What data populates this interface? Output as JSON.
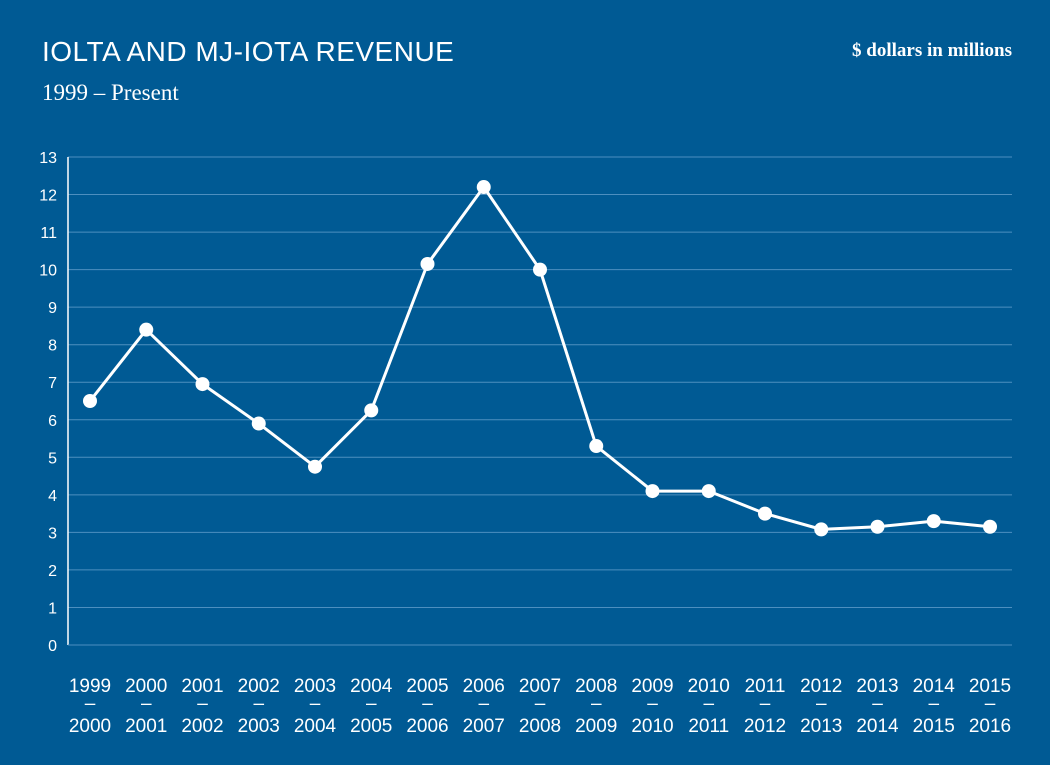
{
  "colors": {
    "background": "#005a94",
    "line": "#ffffff",
    "grid": "#4d8fbf"
  },
  "chart_data": {
    "type": "line",
    "title": "IOLTA AND MJ-IOTA REVENUE",
    "subtitle": "1999 – Present",
    "units_note": "$ dollars in millions",
    "grid": true,
    "ylim": [
      0,
      13
    ],
    "yticks": [
      0,
      1,
      2,
      3,
      4,
      5,
      6,
      7,
      8,
      9,
      10,
      11,
      12,
      13
    ],
    "categories": [
      [
        "1999",
        "–",
        "2000"
      ],
      [
        "2000",
        "–",
        "2001"
      ],
      [
        "2001",
        "–",
        "2002"
      ],
      [
        "2002",
        "–",
        "2003"
      ],
      [
        "2003",
        "–",
        "2004"
      ],
      [
        "2004",
        "–",
        "2005"
      ],
      [
        "2005",
        "–",
        "2006"
      ],
      [
        "2006",
        "–",
        "2007"
      ],
      [
        "2007",
        "–",
        "2008"
      ],
      [
        "2008",
        "–",
        "2009"
      ],
      [
        "2009",
        "–",
        "2010"
      ],
      [
        "2010",
        "–",
        "2011"
      ],
      [
        "2011",
        "–",
        "2012"
      ],
      [
        "2012",
        "–",
        "2013"
      ],
      [
        "2013",
        "–",
        "2014"
      ],
      [
        "2014",
        "–",
        "2015"
      ],
      [
        "2015",
        "–",
        "2016"
      ]
    ],
    "series": [
      {
        "values": [
          6.5,
          8.4,
          6.95,
          5.9,
          4.75,
          6.25,
          10.15,
          12.2,
          10.0,
          5.3,
          4.1,
          4.1,
          3.5,
          3.08,
          3.15,
          3.3,
          3.15
        ]
      }
    ]
  }
}
